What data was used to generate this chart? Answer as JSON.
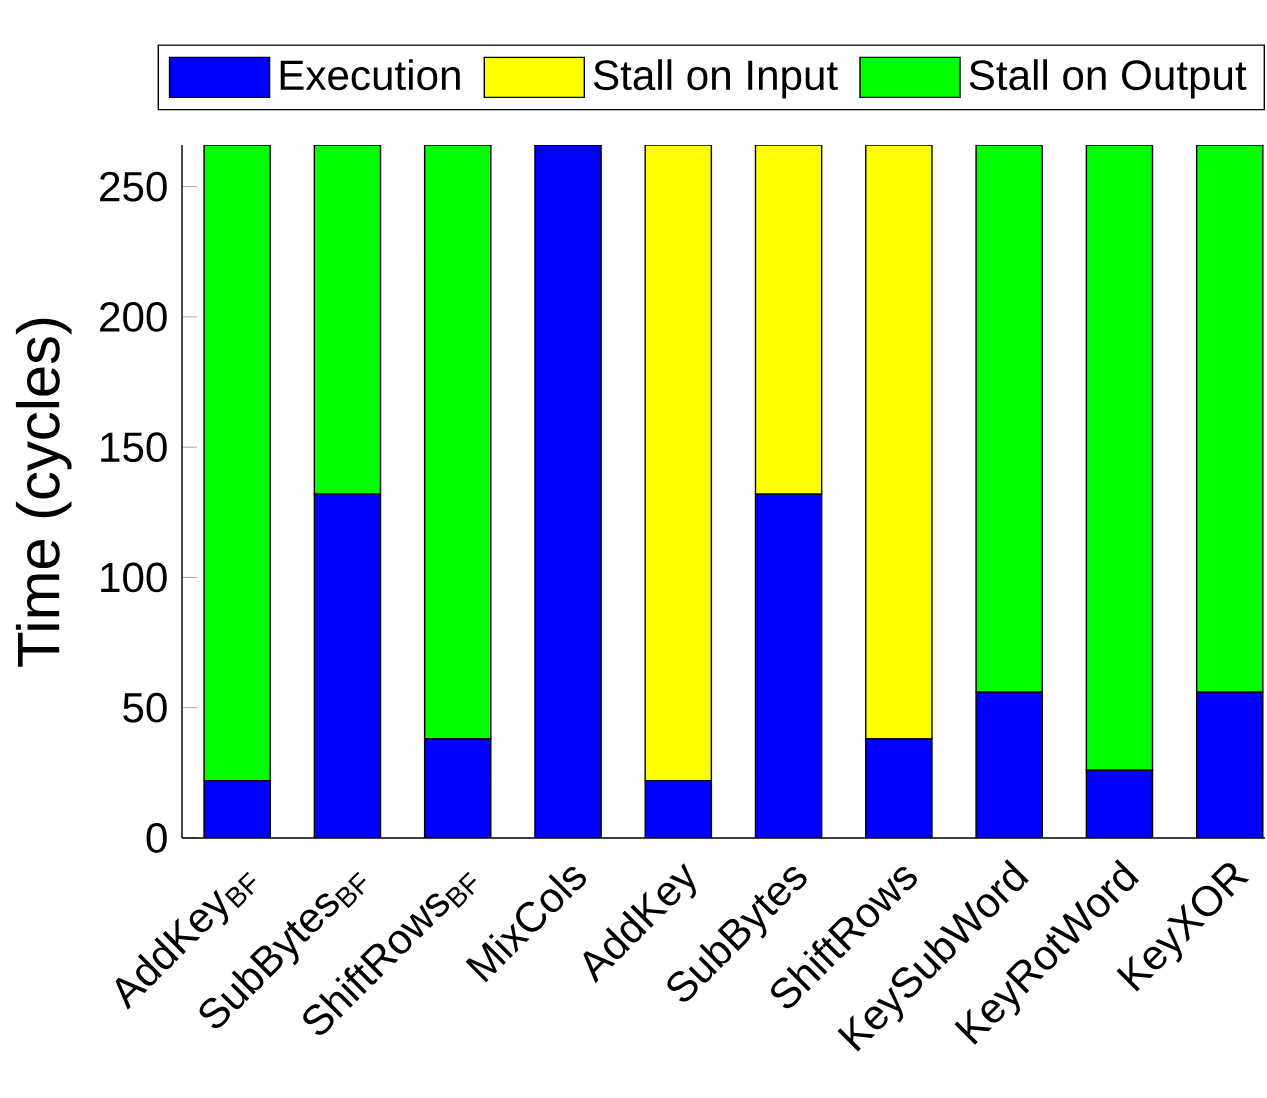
{
  "chart_data": {
    "type": "bar",
    "stacked": true,
    "ylabel": "Time (cycles)",
    "categories": [
      "AddKey$_{BF}$",
      "SubBytes$_{BF}$",
      "ShiftRows$_{BF}$",
      "MixCols",
      "AddKey",
      "SubBytes",
      "ShiftRows",
      "KeySubWord",
      "KeyRotWord",
      "KeyXOR"
    ],
    "series": [
      {
        "name": "Execution",
        "color": "#0000ff",
        "values": [
          22,
          132,
          38,
          266,
          22,
          132,
          38,
          56,
          26,
          56
        ]
      },
      {
        "name": "Stall on Input",
        "color": "#ffff00",
        "values": [
          0,
          0,
          0,
          0,
          244,
          134,
          228,
          0,
          0,
          0
        ]
      },
      {
        "name": "Stall on Output",
        "color": "#00ff00",
        "values": [
          244,
          134,
          228,
          0,
          0,
          0,
          0,
          210,
          240,
          210
        ]
      }
    ],
    "ylim": [
      0,
      266
    ],
    "yticks": [
      0,
      50,
      100,
      150,
      200,
      250
    ],
    "legend": "top",
    "grid": false
  }
}
